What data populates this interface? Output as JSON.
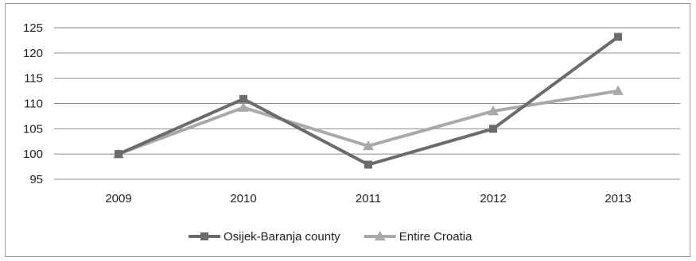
{
  "chart_data": {
    "type": "line",
    "title": "",
    "xlabel": "",
    "ylabel": "",
    "categories": [
      "2009",
      "2010",
      "2011",
      "2012",
      "2013"
    ],
    "yticks": [
      95,
      100,
      105,
      110,
      115,
      120,
      125
    ],
    "ylim": [
      95,
      125
    ],
    "grid": true,
    "legend_position": "bottom",
    "series": [
      {
        "name": "Osijek-Baranja county",
        "values": [
          100,
          110.9,
          97.9,
          105,
          123.2
        ],
        "color": "#6b6b6b",
        "marker": "square"
      },
      {
        "name": "Entire Croatia",
        "values": [
          100,
          109.2,
          101.6,
          108.5,
          112.5
        ],
        "color": "#a9a9a9",
        "marker": "triangle"
      }
    ]
  }
}
